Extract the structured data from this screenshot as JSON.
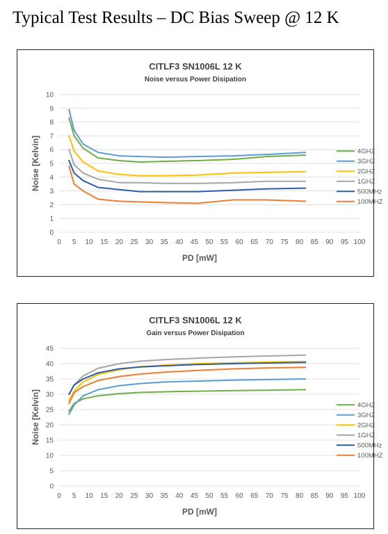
{
  "page": {
    "title": "Typical Test Results – DC Bias Sweep @ 12 K"
  },
  "chart_data": [
    {
      "type": "line",
      "title": "CITLF3 SN1006L 12 K",
      "subtitle": "Noise versus Power Disipation",
      "xlabel": "PD [mW]",
      "ylabel": "Noise [Kelvin]",
      "xlim": [
        0,
        100
      ],
      "ylim": [
        0,
        10
      ],
      "xticks": [
        0,
        5,
        10,
        15,
        20,
        25,
        30,
        35,
        40,
        45,
        50,
        55,
        60,
        65,
        70,
        75,
        80,
        85,
        90,
        95,
        100
      ],
      "yticks": [
        0,
        1,
        2,
        3,
        4,
        5,
        6,
        7,
        8,
        9,
        10
      ],
      "grid": true,
      "legend_position": "right",
      "x": [
        3.3,
        5,
        8,
        13,
        20,
        27,
        35,
        46,
        58,
        69,
        82
      ],
      "series": [
        {
          "name": "4GHZ",
          "color": "#70AD47",
          "values": [
            8.3,
            7.0,
            6.1,
            5.4,
            5.2,
            5.1,
            5.15,
            5.2,
            5.3,
            5.5,
            5.6
          ]
        },
        {
          "name": "3GHZ",
          "color": "#5B9BD5",
          "values": [
            8.9,
            7.4,
            6.4,
            5.8,
            5.55,
            5.5,
            5.45,
            5.5,
            5.55,
            5.65,
            5.8
          ]
        },
        {
          "name": "2GHZ",
          "color": "#FFC000",
          "values": [
            7.0,
            5.9,
            5.1,
            4.45,
            4.2,
            4.1,
            4.1,
            4.15,
            4.3,
            4.35,
            4.4
          ]
        },
        {
          "name": "1GHZ",
          "color": "#A5A5A5",
          "values": [
            6.0,
            4.9,
            4.3,
            3.85,
            3.6,
            3.6,
            3.55,
            3.55,
            3.6,
            3.7,
            3.7
          ]
        },
        {
          "name": "500MHz",
          "color": "#2E5DA8",
          "values": [
            5.2,
            4.3,
            3.75,
            3.25,
            3.1,
            2.95,
            2.95,
            2.95,
            3.05,
            3.15,
            3.2
          ]
        },
        {
          "name": "100MHZ",
          "color": "#ED7D31",
          "values": [
            4.8,
            3.5,
            3.0,
            2.4,
            2.25,
            2.2,
            2.15,
            2.1,
            2.35,
            2.35,
            2.25
          ]
        }
      ]
    },
    {
      "type": "line",
      "title": "CITLF3 SN1006L 12 K",
      "subtitle": "Gain versus Power Disipation",
      "xlabel": "PD [mW]",
      "ylabel": "Noise [Kelvin]",
      "xlim": [
        0,
        100
      ],
      "ylim": [
        0,
        45
      ],
      "xticks": [
        0,
        5,
        10,
        15,
        20,
        25,
        30,
        35,
        40,
        45,
        50,
        55,
        60,
        65,
        70,
        75,
        80,
        85,
        90,
        95,
        100
      ],
      "yticks": [
        0,
        5,
        10,
        15,
        20,
        25,
        30,
        35,
        40,
        45
      ],
      "grid": true,
      "legend_position": "right",
      "x": [
        3.3,
        5,
        8,
        13,
        20,
        27,
        35,
        46,
        58,
        69,
        82
      ],
      "series": [
        {
          "name": "4GHZ",
          "color": "#70AD47",
          "values": [
            24.5,
            27,
            28.5,
            29.5,
            30.2,
            30.6,
            30.8,
            31.0,
            31.2,
            31.3,
            31.5
          ]
        },
        {
          "name": "3GHZ",
          "color": "#5B9BD5",
          "values": [
            23.5,
            26.5,
            29.5,
            31.5,
            32.8,
            33.5,
            34.0,
            34.3,
            34.6,
            34.8,
            35.0
          ]
        },
        {
          "name": "2GHZ",
          "color": "#FFC000",
          "values": [
            28,
            31,
            34,
            36.5,
            38.0,
            39.0,
            39.5,
            40.0,
            40.3,
            40.5,
            40.7
          ]
        },
        {
          "name": "1GHZ",
          "color": "#A5A5A5",
          "values": [
            30,
            33,
            36,
            38.5,
            40.0,
            40.8,
            41.3,
            41.8,
            42.2,
            42.5,
            42.8
          ]
        },
        {
          "name": "500MHz",
          "color": "#2E5DA8",
          "values": [
            30,
            33,
            35,
            37,
            38.3,
            38.9,
            39.3,
            39.7,
            40.0,
            40.2,
            40.4
          ]
        },
        {
          "name": "100MHZ",
          "color": "#ED7D31",
          "values": [
            27,
            30.5,
            32.5,
            34.5,
            35.8,
            36.6,
            37.2,
            37.8,
            38.3,
            38.6,
            38.8
          ]
        }
      ]
    }
  ]
}
